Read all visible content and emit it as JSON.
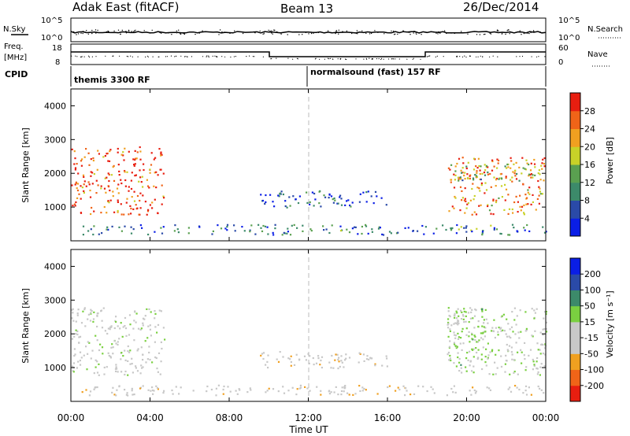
{
  "header": {
    "title": "Adak East (fitACF)",
    "beam": "Beam 13",
    "date": "26/Dec/2014"
  },
  "nsky_panel": {
    "left_label": "N.Sky",
    "right_label": "N.Search",
    "y_ticks_left": [
      "10^5",
      "10^0"
    ],
    "y_ticks_right": [
      "10^5",
      "10^0"
    ]
  },
  "freq_panel": {
    "left_label_line1": "Freq.",
    "left_label_line2": "[MHz]",
    "right_label": "Nave",
    "y_ticks_left": [
      "18",
      "8"
    ],
    "y_ticks_right": [
      "60",
      "0"
    ]
  },
  "cpid_panel": {
    "left_label": "CPID",
    "mode1": "themis 3300 RF",
    "mode2": "normalsound (fast) 157 RF"
  },
  "x_axis": {
    "label": "Time UT",
    "ticks": [
      "00:00",
      "04:00",
      "08:00",
      "12:00",
      "16:00",
      "20:00",
      "00:00"
    ]
  },
  "colors": {
    "power_scale": [
      "#0a1ee6",
      "#2a4aa8",
      "#3c8a6a",
      "#5aa050",
      "#c8d228",
      "#f0a020",
      "#f06418",
      "#e81e10"
    ],
    "velocity_scale": [
      "#e81e10",
      "#f06418",
      "#f0a020",
      "#c8c8c8",
      "#c8c8c8",
      "#7ad040",
      "#3c8a6a",
      "#2a4aa8",
      "#0a1ee6"
    ]
  },
  "power_colorbar": {
    "label": "Power [dB]",
    "ticks": [
      "28",
      "24",
      "20",
      "16",
      "12",
      "8",
      "4"
    ]
  },
  "velocity_colorbar": {
    "label": "Velocity [m s⁻¹]",
    "ticks": [
      "200",
      "100",
      "50",
      "15",
      "-15",
      "-50",
      "-100",
      "-200"
    ]
  },
  "chart_data": [
    {
      "type": "heatmap",
      "name": "power",
      "ylabel": "Slant Range [km]",
      "xlabel": "",
      "xlim": [
        0,
        24
      ],
      "ylim": [
        0,
        4500
      ],
      "yticks": [
        1000,
        2000,
        3000,
        4000
      ],
      "xticks": [
        0,
        4,
        8,
        12,
        16,
        20,
        24
      ],
      "clim": [
        0,
        30
      ],
      "regions": [
        {
          "t": [
            0.0,
            4.7
          ],
          "r": [
            800,
            2800
          ],
          "level": "strong",
          "value": 26
        },
        {
          "t": [
            19.0,
            24.0
          ],
          "r": [
            800,
            2500
          ],
          "level": "strong",
          "value": 22
        },
        {
          "t": [
            19.3,
            24.0
          ],
          "r": [
            1800,
            2300
          ],
          "level": "moderate",
          "value": 14
        },
        {
          "t": [
            9.5,
            16.0
          ],
          "r": [
            1000,
            1500
          ],
          "level": "weak",
          "value": 6
        },
        {
          "t": [
            0.5,
            24.0
          ],
          "r": [
            200,
            500
          ],
          "level": "weak",
          "value": 8
        }
      ]
    },
    {
      "type": "heatmap",
      "name": "velocity",
      "ylabel": "Slant Range [km]",
      "xlabel": "Time UT",
      "xlim": [
        0,
        24
      ],
      "ylim": [
        0,
        4500
      ],
      "yticks": [
        1000,
        2000,
        3000,
        4000
      ],
      "xticks": [
        0,
        4,
        8,
        12,
        16,
        20,
        24
      ],
      "clim": [
        -200,
        200
      ],
      "regions": [
        {
          "t": [
            0.0,
            4.7
          ],
          "r": [
            800,
            2800
          ],
          "value": -5
        },
        {
          "t": [
            19.0,
            24.0
          ],
          "r": [
            800,
            2800
          ],
          "value": 10
        },
        {
          "t": [
            19.0,
            21.0
          ],
          "r": [
            1000,
            2800
          ],
          "value": 30
        },
        {
          "t": [
            9.5,
            16.0
          ],
          "r": [
            1000,
            1500
          ],
          "value": -40
        },
        {
          "t": [
            0.5,
            24.0
          ],
          "r": [
            200,
            500
          ],
          "value": -40
        }
      ]
    }
  ]
}
